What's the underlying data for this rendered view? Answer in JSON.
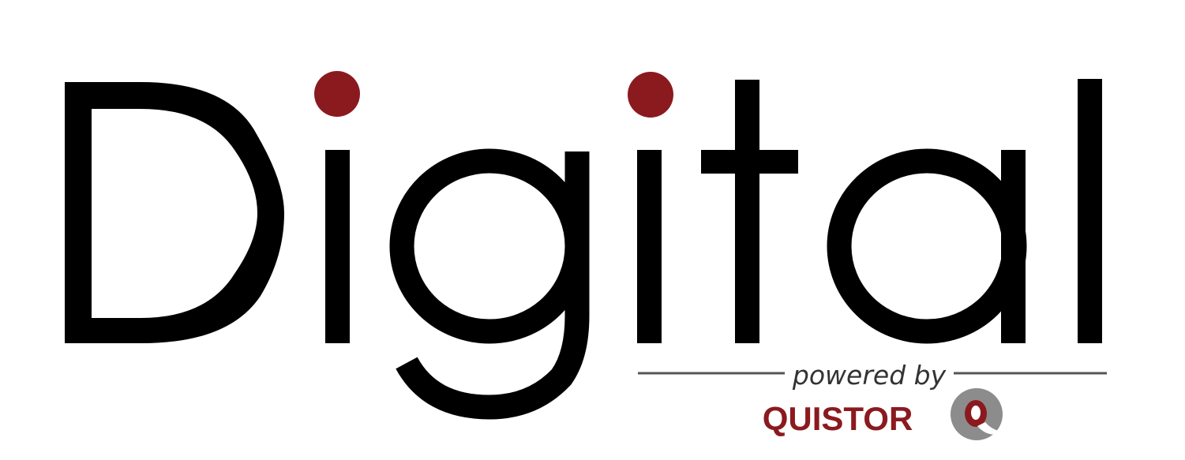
{
  "logo": {
    "word": "Digital",
    "letters": [
      "D",
      "i",
      "g",
      "i",
      "t",
      "a",
      "l"
    ],
    "tagline": "powered by",
    "brand": "QUISTOR",
    "brand_mark": "Q"
  },
  "icons": {
    "brand_mark": "quistor-q-icon",
    "i_dot": "red-dot-icon"
  },
  "colors": {
    "text": "#000000",
    "accent": "#8b1a1f",
    "tagline": "#333333",
    "rule": "#555555",
    "brand_mark_gray": "#8c8c8c",
    "background": "#ffffff"
  }
}
